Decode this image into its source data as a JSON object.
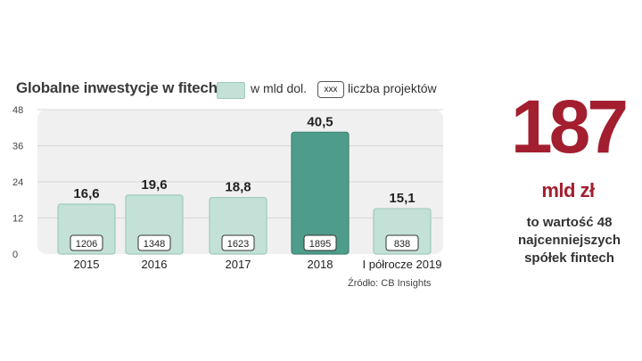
{
  "chart_data": {
    "type": "bar",
    "title": "Globalne inwestycje w fitech",
    "categories": [
      "2015",
      "2016",
      "2017",
      "2018",
      "I półrocze 2019"
    ],
    "values": [
      16.6,
      19.6,
      18.8,
      40.5,
      15.1
    ],
    "value_labels": [
      "16,6",
      "19,6",
      "18,8",
      "40,5",
      "15,1"
    ],
    "project_counts": [
      "1206",
      "1348",
      "1623",
      "1895",
      "838"
    ],
    "highlight_index": 3,
    "ylim": [
      0,
      48
    ],
    "yticks": [
      0,
      12,
      24,
      36,
      48
    ],
    "grid": true,
    "legend": {
      "position": "top",
      "series_label": "w mld dol.",
      "box_sample": "xxx",
      "box_label": "liczba projektów"
    },
    "source": "Źródło: CB Insights",
    "colors": {
      "bar": "#c3e1d6",
      "bar_border": "#9fcbbb",
      "highlight": "#4e9c8a",
      "highlight_border": "#3f8474",
      "plot_bg": "#f0f0f0",
      "grid": "#d8d8d8"
    }
  },
  "callout": {
    "number": "187",
    "unit": "mld zł",
    "lines": [
      "to wartość 48",
      "najcenniejszych",
      "spółek fintech"
    ],
    "color": "#a31e2f"
  }
}
